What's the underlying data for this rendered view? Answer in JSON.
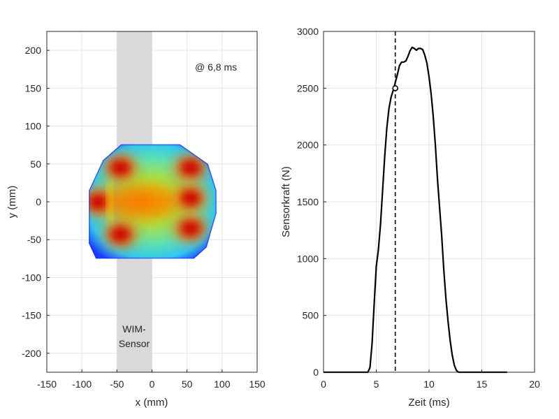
{
  "chart_data": [
    {
      "type": "heatmap",
      "xlabel": "x (mm)",
      "ylabel": "y (mm)",
      "xlim": [
        -150,
        150
      ],
      "ylim": [
        -225,
        225
      ],
      "xticks": [
        -150,
        -100,
        -50,
        0,
        50,
        100,
        150
      ],
      "yticks": [
        -200,
        -150,
        -100,
        -50,
        0,
        50,
        100,
        150,
        200
      ],
      "grid": true,
      "colormap": "jet",
      "annotation": "@ 6,8 ms",
      "sensor_band": {
        "label_line1": "WIM-",
        "label_line2": "Sensor",
        "x_range": [
          -50,
          0
        ],
        "color": "#d9d9d9"
      },
      "footprint_outline": [
        [
          -44,
          76
        ],
        [
          40,
          76
        ],
        [
          80,
          50
        ],
        [
          92,
          15
        ],
        [
          92,
          -15
        ],
        [
          78,
          -60
        ],
        [
          60,
          -75
        ],
        [
          -80,
          -75
        ],
        [
          -90,
          -55
        ],
        [
          -90,
          15
        ],
        [
          -70,
          55
        ]
      ],
      "hotspots": [
        {
          "x": -45,
          "y": 45,
          "intensity": 1.0
        },
        {
          "x": -45,
          "y": -43,
          "intensity": 1.0
        },
        {
          "x": -77,
          "y": 0,
          "intensity": 1.0
        },
        {
          "x": 55,
          "y": 45,
          "intensity": 1.0
        },
        {
          "x": 55,
          "y": -35,
          "intensity": 1.0
        },
        {
          "x": 55,
          "y": 5,
          "intensity": 0.95
        },
        {
          "x": -30,
          "y": 0,
          "intensity": 0.75
        },
        {
          "x": 5,
          "y": 0,
          "intensity": 0.6
        }
      ]
    },
    {
      "type": "line",
      "xlabel": "Zeit (ms)",
      "ylabel": "Sensorkraft (N)",
      "xlim": [
        0,
        20
      ],
      "ylim": [
        0,
        3000
      ],
      "xticks": [
        0,
        5,
        10,
        15,
        20
      ],
      "yticks": [
        0,
        500,
        1000,
        1500,
        2000,
        2500,
        3000
      ],
      "grid": true,
      "series": [
        {
          "color": "#000000",
          "x": [
            0,
            4.2,
            4.4,
            4.6,
            4.8,
            5.0,
            5.2,
            5.4,
            5.6,
            5.8,
            6.0,
            6.2,
            6.4,
            6.6,
            6.8,
            7.0,
            7.2,
            7.4,
            7.6,
            7.8,
            8.0,
            8.2,
            8.4,
            8.6,
            8.8,
            9.0,
            9.2,
            9.4,
            9.6,
            9.8,
            10.0,
            10.2,
            10.4,
            10.6,
            10.8,
            11.0,
            11.2,
            11.4,
            11.6,
            11.8,
            12.0,
            12.2,
            12.4,
            12.6,
            12.8,
            13.0,
            13.2,
            13.4,
            13.6,
            17.4
          ],
          "y": [
            0,
            0,
            40,
            250,
            600,
            930,
            1080,
            1300,
            1600,
            1900,
            2150,
            2320,
            2420,
            2480,
            2550,
            2620,
            2700,
            2730,
            2730,
            2740,
            2780,
            2830,
            2860,
            2850,
            2835,
            2850,
            2850,
            2840,
            2790,
            2720,
            2600,
            2450,
            2250,
            2000,
            1700,
            1450,
            1200,
            900,
            650,
            450,
            280,
            150,
            60,
            15,
            0,
            0,
            0,
            0,
            0,
            0
          ]
        }
      ],
      "vline_x": 6.8,
      "marker": {
        "x": 6.8,
        "y": 2500
      }
    }
  ]
}
